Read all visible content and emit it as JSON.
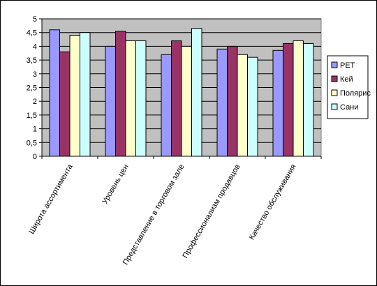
{
  "chart_data": {
    "type": "bar",
    "title": "",
    "xlabel": "",
    "ylabel": "",
    "ylim": [
      0,
      5
    ],
    "yticks": [
      "0",
      "0,5",
      "1",
      "1,5",
      "2",
      "2,5",
      "3",
      "3,5",
      "4",
      "4,5",
      "5"
    ],
    "ytick_values": [
      0,
      0.5,
      1,
      1.5,
      2,
      2.5,
      3,
      3.5,
      4,
      4.5,
      5
    ],
    "grid": true,
    "legend_position": "right",
    "plot_background": "#c0c0c0",
    "categories": [
      "Широта ассортимента",
      "Уровень цен",
      "Представление в торговом зале",
      "Профессионализм продавцов",
      "Качество обслуживания"
    ],
    "series": [
      {
        "name": "РЕТ",
        "color": "#9999ff",
        "values": [
          4.6,
          4.0,
          3.7,
          3.9,
          3.85
        ]
      },
      {
        "name": "Кей",
        "color": "#993366",
        "values": [
          3.8,
          4.55,
          4.2,
          4.0,
          4.1
        ]
      },
      {
        "name": "Полярис",
        "color": "#ffffcc",
        "values": [
          4.4,
          4.2,
          4.0,
          3.7,
          4.2
        ]
      },
      {
        "name": "Сани",
        "color": "#ccffff",
        "values": [
          4.5,
          4.2,
          4.65,
          3.6,
          4.1
        ]
      }
    ]
  }
}
